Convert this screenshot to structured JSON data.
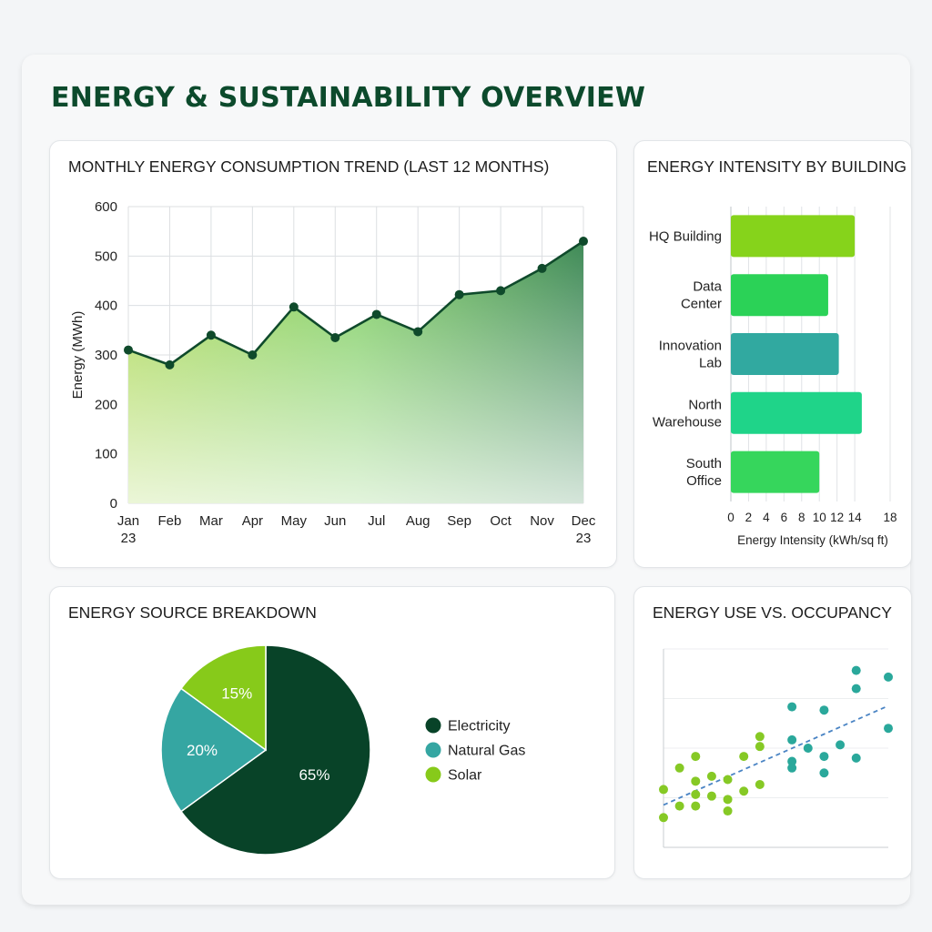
{
  "page": {
    "title": "ENERGY & SUSTAINABILITY OVERVIEW"
  },
  "colors": {
    "title": "#0c4a2c",
    "line": "#0f4a2b",
    "electricity": "#084328",
    "natural_gas": "#35a6a2",
    "solar": "#87ca1a",
    "scatter_low": "#86c925",
    "scatter_high": "#2aa89b",
    "trend": "#4a84c4"
  },
  "chart_data": [
    {
      "id": "trend",
      "type": "area",
      "title": "MONTHLY ENERGY CONSUMPTION TREND (LAST 12 MONTHS)",
      "xlabel": "",
      "ylabel": "Energy (MWh)",
      "categories": [
        "Jan\n23",
        "Feb",
        "Mar",
        "Apr",
        "May",
        "Jun",
        "Jul",
        "Aug",
        "Sep",
        "Oct",
        "Nov",
        "Dec\n23"
      ],
      "values": [
        310,
        280,
        340,
        300,
        397,
        335,
        382,
        347,
        422,
        430,
        475,
        530
      ],
      "ylim": [
        0,
        600
      ],
      "yticks": [
        0,
        100,
        200,
        300,
        400,
        500,
        600
      ],
      "grid": true
    },
    {
      "id": "intensity",
      "type": "bar",
      "orientation": "horizontal",
      "title": "ENERGY INTENSITY BY BUILDING",
      "xlabel": "Energy Intensity (kWh/sq ft)",
      "categories": [
        "HQ Building",
        "Data\nCenter",
        "Innovation\nLab",
        "North\nWarehouse",
        "South\nOffice"
      ],
      "values": [
        14,
        11,
        12.2,
        14.8,
        10
      ],
      "bar_colors": [
        "#86d31b",
        "#2bd257",
        "#31a9a0",
        "#1fd489",
        "#36d65c"
      ],
      "xlim": [
        0,
        18
      ],
      "xticks": [
        0,
        2,
        4,
        6,
        8,
        10,
        12,
        14,
        18
      ],
      "grid": true
    },
    {
      "id": "sources",
      "type": "pie",
      "title": "ENERGY SOURCE BREAKDOWN",
      "labels": [
        "Electricity",
        "Natural Gas",
        "Solar"
      ],
      "values": [
        65,
        20,
        15
      ],
      "value_labels": [
        "65%",
        "20%",
        "15%"
      ],
      "legend": "right"
    },
    {
      "id": "occupancy",
      "type": "scatter",
      "title": "ENERGY USE VS. OCCUPANCY",
      "xlabel": "",
      "ylabel": "",
      "xlim": [
        0,
        14
      ],
      "ylim": [
        0,
        12
      ],
      "trendline": true,
      "series": [
        {
          "points": [
            [
              0,
              3.5
            ],
            [
              0,
              1.8
            ],
            [
              1,
              4.8
            ],
            [
              1,
              2.5
            ],
            [
              2,
              5.5
            ],
            [
              2,
              4
            ],
            [
              2,
              3.2
            ],
            [
              2,
              2.5
            ],
            [
              3,
              4.3
            ],
            [
              3,
              3.1
            ],
            [
              4,
              4.1
            ],
            [
              4,
              2.9
            ],
            [
              4,
              2.2
            ],
            [
              5,
              5.5
            ],
            [
              5,
              3.4
            ],
            [
              6,
              6.7
            ],
            [
              6,
              6.1
            ],
            [
              6,
              3.8
            ]
          ]
        },
        {
          "points": [
            [
              8,
              8.5
            ],
            [
              8,
              6.5
            ],
            [
              8,
              5.2
            ],
            [
              8,
              4.8
            ],
            [
              9,
              6
            ],
            [
              10,
              8.3
            ],
            [
              10,
              5.5
            ],
            [
              10,
              4.5
            ],
            [
              11,
              6.2
            ],
            [
              12,
              10.7
            ],
            [
              12,
              9.6
            ],
            [
              12,
              5.4
            ],
            [
              14,
              10.3
            ],
            [
              14,
              7.2
            ]
          ]
        }
      ]
    }
  ]
}
